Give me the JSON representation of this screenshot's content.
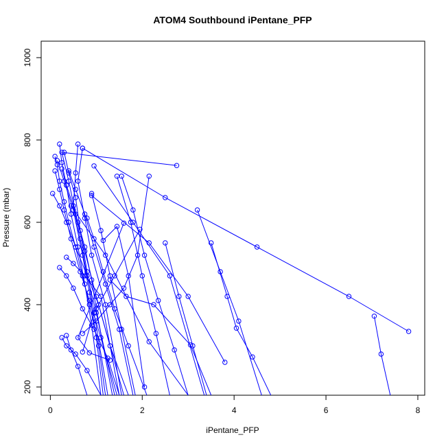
{
  "chart_data": {
    "type": "line",
    "title": "ATOM4 Southbound iPentane_PFP",
    "xlabel": "iPentane_PFP",
    "ylabel": "Pressure (mbar)",
    "xlim": [
      -0.2,
      8.15
    ],
    "ylim": [
      1040,
      180
    ],
    "y_reversed": true,
    "x_ticks": [
      0,
      2,
      4,
      6,
      8
    ],
    "y_ticks": [
      200,
      400,
      600,
      800,
      1000
    ],
    "color": "#0000ff",
    "marker": "open-circle",
    "grid": false,
    "series": [
      {
        "x": [
          0.1,
          0.15,
          0.2,
          0.3,
          0.4,
          0.55,
          0.7,
          0.85,
          1.05,
          1.2
        ],
        "y": [
          760,
          740,
          700,
          650,
          600,
          540,
          470,
          400,
          300,
          180
        ]
      },
      {
        "x": [
          0.2,
          0.25,
          0.35,
          0.45,
          0.6,
          0.75,
          0.9,
          1.1
        ],
        "y": [
          790,
          745,
          690,
          620,
          540,
          450,
          350,
          180
        ]
      },
      {
        "x": [
          0.15,
          0.3,
          0.5,
          0.7,
          0.85,
          1.0,
          1.15
        ],
        "y": [
          750,
          700,
          630,
          520,
          430,
          320,
          180
        ]
      },
      {
        "x": [
          0.3,
          0.4,
          0.55,
          0.65,
          0.8,
          0.95,
          1.25
        ],
        "y": [
          770,
          720,
          660,
          580,
          480,
          380,
          180
        ]
      },
      {
        "x": [
          0.25,
          0.35,
          0.5,
          0.6,
          0.75,
          0.9,
          1.0,
          1.35
        ],
        "y": [
          730,
          690,
          640,
          600,
          540,
          460,
          390,
          180
        ]
      },
      {
        "x": [
          0.6,
          0.55,
          0.5,
          0.65,
          0.8,
          1.0,
          1.4
        ],
        "y": [
          790,
          720,
          640,
          560,
          470,
          380,
          180
        ]
      },
      {
        "x": [
          0.7,
          0.6,
          0.75,
          0.9,
          1.2,
          1.55
        ],
        "y": [
          780,
          700,
          610,
          520,
          400,
          180
        ]
      },
      {
        "x": [
          2.75,
          0.25,
          0.4,
          0.55,
          0.75,
          1.0,
          1.6
        ],
        "y": [
          738,
          770,
          700,
          620,
          530,
          420,
          180
        ]
      },
      {
        "x": [
          0.1,
          0.2,
          0.3,
          0.45,
          0.65,
          0.85,
          1.1,
          1.45
        ],
        "y": [
          725,
          680,
          630,
          560,
          480,
          410,
          320,
          180
        ]
      },
      {
        "x": [
          0.05,
          0.2,
          0.35,
          0.55,
          0.8,
          1.05,
          1.3,
          1.7
        ],
        "y": [
          670,
          640,
          600,
          540,
          470,
          400,
          300,
          180
        ]
      },
      {
        "x": [
          0.4,
          0.55,
          0.75,
          0.95,
          1.2,
          1.5,
          1.8
        ],
        "y": [
          725,
          680,
          620,
          540,
          450,
          340,
          180
        ]
      },
      {
        "x": [
          0.2,
          0.35,
          0.5,
          0.7,
          0.95,
          1.25,
          1.5
        ],
        "y": [
          490,
          470,
          440,
          390,
          340,
          270,
          180
        ]
      },
      {
        "x": [
          0.25,
          0.35,
          0.55,
          0.8,
          1.1
        ],
        "y": [
          320,
          300,
          280,
          240,
          180
        ]
      },
      {
        "x": [
          0.35,
          0.45,
          0.6,
          0.8
        ],
        "y": [
          325,
          290,
          250,
          180
        ]
      },
      {
        "x": [
          0.8,
          0.95,
          1.15,
          1.4,
          1.7,
          2.1
        ],
        "y": [
          610,
          560,
          480,
          390,
          300,
          180
        ]
      },
      {
        "x": [
          0.9,
          1.1,
          1.3,
          1.55,
          1.85
        ],
        "y": [
          670,
          580,
          470,
          340,
          180
        ]
      },
      {
        "x": [
          1.45,
          1.75,
          2.0,
          2.3,
          2.6
        ],
        "y": [
          712,
          600,
          470,
          330,
          180
        ]
      },
      {
        "x": [
          1.55,
          1.8,
          2.05,
          2.35,
          2.7,
          3.0
        ],
        "y": [
          712,
          630,
          520,
          410,
          290,
          180
        ]
      },
      {
        "x": [
          2.15,
          1.9,
          1.6,
          1.3,
          1.0,
          0.7
        ],
        "y": [
          712,
          520,
          440,
          400,
          360,
          330
        ]
      },
      {
        "x": [
          2.5,
          2.8,
          3.1,
          3.4
        ],
        "y": [
          550,
          420,
          300,
          180
        ]
      },
      {
        "x": [
          3.5,
          3.85,
          4.05,
          4.4,
          4.8
        ],
        "y": [
          550,
          420,
          343,
          273,
          180
        ]
      },
      {
        "x": [
          3.2,
          3.7,
          4.1,
          4.6
        ],
        "y": [
          630,
          480,
          360,
          180
        ]
      },
      {
        "x": [
          7.05,
          7.2,
          7.4
        ],
        "y": [
          372,
          280,
          180
        ]
      },
      {
        "x": [
          0.7,
          2.5,
          4.5,
          6.5,
          7.8
        ],
        "y": [
          780,
          660,
          540,
          420,
          335
        ]
      },
      {
        "x": [
          0.95,
          1.8,
          2.6,
          3.35
        ],
        "y": [
          737,
          600,
          470,
          180
        ]
      },
      {
        "x": [
          1.6,
          0.6,
          0.85,
          1.3
        ],
        "y": [
          598,
          320,
          283,
          265
        ]
      },
      {
        "x": [
          1.95,
          1.4,
          0.95,
          0.7
        ],
        "y": [
          583,
          470,
          380,
          285
        ]
      },
      {
        "x": [
          0.45,
          1.2,
          2.15,
          3.0
        ],
        "y": [
          640,
          520,
          310,
          180
        ]
      },
      {
        "x": [
          1.3,
          1.65,
          2.25,
          3.05,
          3.5
        ],
        "y": [
          460,
          420,
          400,
          302,
          180
        ]
      },
      {
        "x": [
          0.9,
          2.15,
          3.0,
          3.8
        ],
        "y": [
          665,
          550,
          420,
          260
        ]
      },
      {
        "x": [
          0.35,
          0.5,
          0.75,
          1.1,
          1.5
        ],
        "y": [
          515,
          500,
          470,
          420,
          180
        ]
      },
      {
        "x": [
          1.15,
          1.45,
          1.7,
          2.05
        ],
        "y": [
          556,
          590,
          470,
          200
        ]
      }
    ]
  }
}
